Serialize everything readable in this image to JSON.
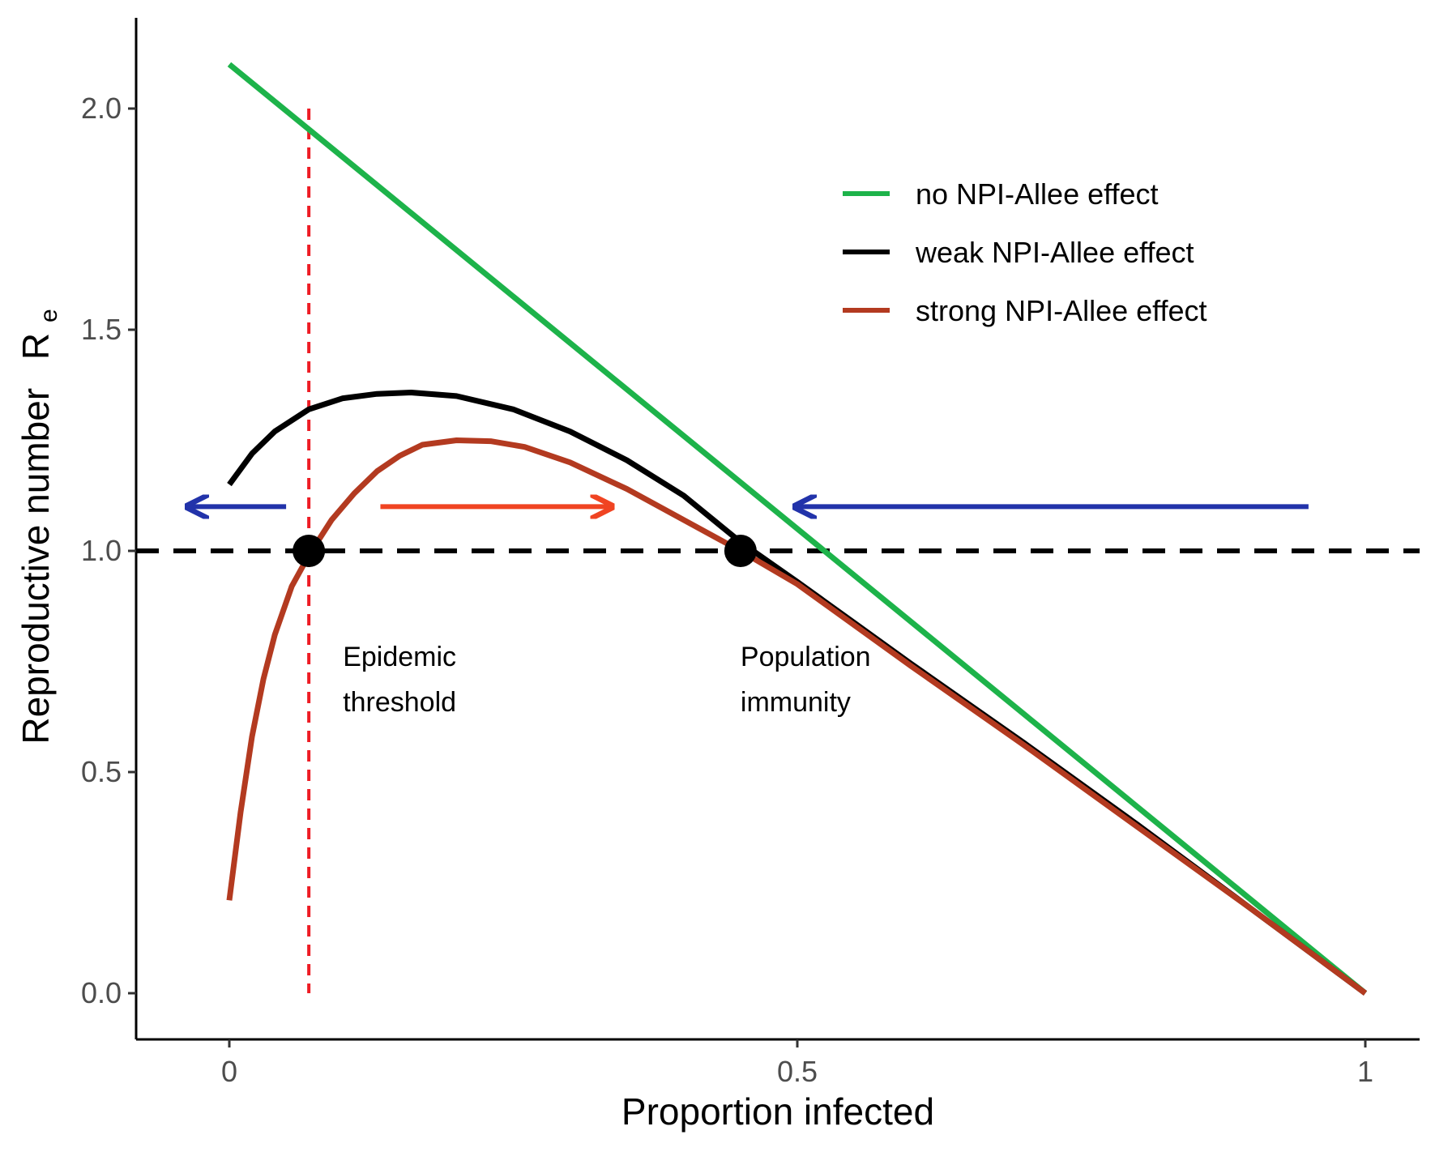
{
  "chart_data": {
    "type": "line",
    "title": "",
    "xlabel": "Proportion infected",
    "ylabel": "Reproductive number",
    "ylabel_subscript_base": "R",
    "ylabel_subscript": "e",
    "xlim": [
      -0.08,
      1.05
    ],
    "ylim": [
      -0.1,
      2.2
    ],
    "x_ticks": [
      0,
      0.5,
      1
    ],
    "x_tick_labels": [
      "0",
      "0.5",
      "1"
    ],
    "y_ticks": [
      0,
      0.5,
      1,
      1.5,
      2
    ],
    "y_tick_labels": [
      "0.0",
      "0.5",
      "1.0",
      "1.5",
      "2.0"
    ],
    "grid": false,
    "legend_position": "top-right",
    "series": [
      {
        "name": "no NPI-Allee effect",
        "color": "#1DB34A",
        "points": [
          [
            0,
            2.1
          ],
          [
            1,
            0
          ]
        ]
      },
      {
        "name": "weak NPI-Allee effect",
        "color": "#000000",
        "points": [
          [
            0,
            1.15
          ],
          [
            0.02,
            1.22
          ],
          [
            0.04,
            1.27
          ],
          [
            0.07,
            1.32
          ],
          [
            0.1,
            1.345
          ],
          [
            0.13,
            1.355
          ],
          [
            0.16,
            1.358
          ],
          [
            0.2,
            1.35
          ],
          [
            0.25,
            1.32
          ],
          [
            0.3,
            1.27
          ],
          [
            0.35,
            1.205
          ],
          [
            0.4,
            1.125
          ],
          [
            0.45,
            1.02
          ],
          [
            0.5,
            0.93
          ],
          [
            0.6,
            0.745
          ],
          [
            0.7,
            0.565
          ],
          [
            0.8,
            0.38
          ],
          [
            0.9,
            0.19
          ],
          [
            1,
            0
          ]
        ]
      },
      {
        "name": "strong NPI-Allee effect",
        "color": "#B33A20",
        "points": [
          [
            0,
            0.21
          ],
          [
            0.01,
            0.41
          ],
          [
            0.02,
            0.58
          ],
          [
            0.03,
            0.71
          ],
          [
            0.04,
            0.81
          ],
          [
            0.055,
            0.92
          ],
          [
            0.07,
            0.99
          ],
          [
            0.09,
            1.07
          ],
          [
            0.11,
            1.13
          ],
          [
            0.13,
            1.18
          ],
          [
            0.15,
            1.215
          ],
          [
            0.17,
            1.24
          ],
          [
            0.2,
            1.25
          ],
          [
            0.23,
            1.248
          ],
          [
            0.26,
            1.235
          ],
          [
            0.3,
            1.2
          ],
          [
            0.35,
            1.14
          ],
          [
            0.4,
            1.07
          ],
          [
            0.45,
            1.0
          ],
          [
            0.5,
            0.925
          ],
          [
            0.6,
            0.74
          ],
          [
            0.7,
            0.56
          ],
          [
            0.8,
            0.375
          ],
          [
            0.9,
            0.19
          ],
          [
            1,
            0
          ]
        ]
      }
    ],
    "reference_lines": {
      "threshold_y": 1.0,
      "threshold_y_color": "#000000",
      "epidemic_threshold_x": 0.07,
      "epidemic_threshold_color": "#EE1C24",
      "epidemic_threshold_ymax": 2.0
    },
    "points": [
      {
        "name": "epidemic-threshold-point",
        "x": 0.07,
        "y": 1.0
      },
      {
        "name": "population-immunity-point",
        "x": 0.45,
        "y": 1.0
      }
    ],
    "arrows": [
      {
        "name": "left-blue-arrow",
        "from": [
          0.05,
          1.1
        ],
        "to": [
          -0.035,
          1.1
        ],
        "color": "#2233AA"
      },
      {
        "name": "orange-arrow",
        "from": [
          0.133,
          1.1
        ],
        "to": [
          0.335,
          1.1
        ],
        "color": "#F04422"
      },
      {
        "name": "right-blue-arrow",
        "from": [
          0.95,
          1.1
        ],
        "to": [
          0.5,
          1.1
        ],
        "color": "#2233AA"
      }
    ],
    "annotations": [
      {
        "name": "epidemic-threshold-annotation",
        "x": 0.1,
        "y": 0.74,
        "lines": [
          "Epidemic",
          "threshold"
        ]
      },
      {
        "name": "population-immunity-annotation",
        "x": 0.45,
        "y": 0.74,
        "lines": [
          "Population",
          "immunity"
        ]
      }
    ]
  }
}
